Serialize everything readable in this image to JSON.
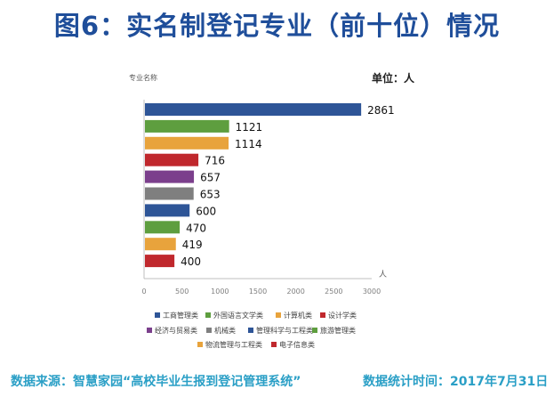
{
  "slide": {
    "title": "图6：实名制登记专业（前十位）情况"
  },
  "footer": {
    "source": "数据来源：智慧家园“高校毕业生报到登记管理系统”",
    "stat_time": "数据统计时间：2017年7月31日"
  },
  "chart_data": {
    "type": "bar",
    "orientation": "horizontal",
    "title": "",
    "ylabel": "专业名称",
    "unit_label": "单位：人",
    "xlabel": "人",
    "xlim": [
      0,
      3000
    ],
    "xticks": [
      0,
      500,
      1000,
      1500,
      2000,
      2500,
      3000
    ],
    "grid": false,
    "legend_position": "bottom",
    "categories": [
      "工商管理类",
      "外国语言文学类",
      "计算机类",
      "设计学类",
      "经济与贸易类",
      "机械类",
      "管理科学与工程类",
      "旅游管理类",
      "物流管理与工程类",
      "电子信息类"
    ],
    "values": [
      2861,
      1121,
      1114,
      716,
      657,
      653,
      600,
      470,
      419,
      400
    ],
    "colors": [
      "#2e5597",
      "#5e9e3f",
      "#e8a33c",
      "#c0282d",
      "#7b3f8c",
      "#7f7f7f",
      "#2e5597",
      "#5e9e3f",
      "#e8a33c",
      "#c0282d"
    ]
  }
}
